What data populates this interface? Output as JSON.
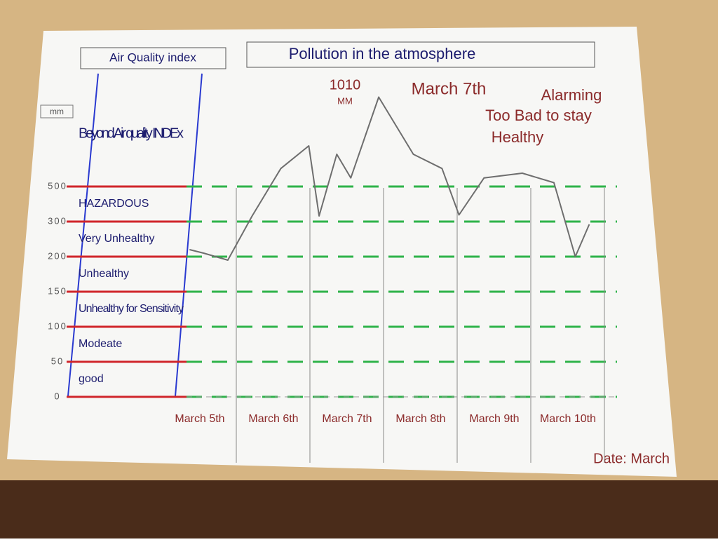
{
  "chart_data": {
    "type": "line",
    "header_left": "Air Quality index",
    "title": "Pollution in the atmosphere",
    "y_unit": "mm",
    "x": [
      4.86,
      5.05,
      5.38,
      5.71,
      6.1,
      6.48,
      6.62,
      6.86,
      7.05,
      7.43,
      7.9,
      8.29,
      8.52,
      8.86,
      9.38,
      9.81,
      10.1,
      10.29
    ],
    "series": [
      {
        "name": "Pollution",
        "color": "#6e6e6e",
        "values": [
          220,
          210,
          195,
          332,
          603,
          732,
          332,
          684,
          549,
          1010,
          684,
          603,
          338,
          549,
          576,
          522,
          200,
          292
        ]
      }
    ],
    "xlim": [
      4.8,
      10.8
    ],
    "xticks": [
      {
        "value": 5,
        "label": "March 5th"
      },
      {
        "value": 6,
        "label": "March 6th"
      },
      {
        "value": 7,
        "label": "March 7th"
      },
      {
        "value": 8,
        "label": "March 8th"
      },
      {
        "value": 9,
        "label": "March 9th"
      },
      {
        "value": 10,
        "label": "March 10th"
      }
    ],
    "ylim": [
      0,
      1100
    ],
    "yticks": [
      0,
      50,
      100,
      150,
      200,
      300,
      500
    ],
    "yscale": "tick-spaced",
    "band_labels": [
      "good",
      "Modeate",
      "Unhealthy for Sensitivity",
      "Unhealthy",
      "Very Unhealthy",
      "HAZARDOUS",
      "Beyond Air quality INDEx"
    ],
    "band_color": "#d0262b",
    "grid_color": "#2fb34a",
    "annotations": [
      "1010",
      "MM",
      "March 7th",
      "Alarming",
      "Too Bad to stay",
      "Healthy"
    ],
    "x_label": "Date: March",
    "grid": true
  }
}
